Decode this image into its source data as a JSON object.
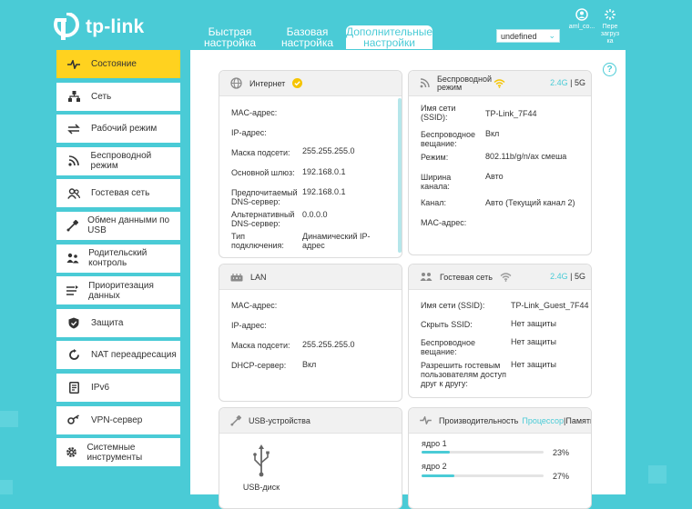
{
  "brand": {
    "logo_text": "tp-link"
  },
  "tabs": [
    {
      "label": "Быстрая настройка"
    },
    {
      "label": "Базовая настройка"
    },
    {
      "label": "Дополнительные настройки"
    }
  ],
  "language": {
    "value": "undefined"
  },
  "top_icons": {
    "account": "aml_co...",
    "reboot": "Пере загруз ка"
  },
  "sidebar": {
    "items": [
      {
        "label": "Состояние"
      },
      {
        "label": "Сеть"
      },
      {
        "label": "Рабочий режим"
      },
      {
        "label": "Беспроводной режим"
      },
      {
        "label": "Гостевая сеть"
      },
      {
        "label": "Обмен данными по USB"
      },
      {
        "label": "Родительский контроль"
      },
      {
        "label": "Приоритезация данных"
      },
      {
        "label": "Защита"
      },
      {
        "label": "NAT переадресация"
      },
      {
        "label": "IPv6"
      },
      {
        "label": "VPN-сервер"
      },
      {
        "label": "Системные инструменты"
      }
    ]
  },
  "internet": {
    "title": "Интернет",
    "rows": [
      {
        "label": "MAC-адрес:",
        "value": ""
      },
      {
        "label": "IP-адрес:",
        "value": ""
      },
      {
        "label": "Маска подсети:",
        "value": "255.255.255.0"
      },
      {
        "label": "Основной шлюз:",
        "value": "192.168.0.1"
      },
      {
        "label": "Предпочитаемый DNS-сервер:",
        "value": "192.168.0.1"
      },
      {
        "label": "Альтернативный DNS-сервер:",
        "value": "0.0.0.0"
      },
      {
        "label": "Тип подключения:",
        "value": "Динамический IP-адрес"
      }
    ]
  },
  "wireless": {
    "title": "Беспроводной режим",
    "band_24": "2.4G",
    "sep": " | ",
    "band_5": "5G",
    "rows": [
      {
        "label": "Имя сети (SSID):",
        "value": "TP-Link_7F44"
      },
      {
        "label": "Беспроводное вещание:",
        "value": "Вкл"
      },
      {
        "label": "Режим:",
        "value": "802.11b/g/n/ax смеша"
      },
      {
        "label": "Ширина канала:",
        "value": "Авто"
      },
      {
        "label": "Канал:",
        "value": "Авто (Текущий канал 2)"
      },
      {
        "label": "MAC-адрес:",
        "value": ""
      }
    ]
  },
  "lan": {
    "title": "LAN",
    "rows": [
      {
        "label": "MAC-адрес:",
        "value": ""
      },
      {
        "label": "IP-адрес:",
        "value": ""
      },
      {
        "label": "Маска подсети:",
        "value": "255.255.255.0"
      },
      {
        "label": "DHCP-сервер:",
        "value": "Вкл"
      }
    ]
  },
  "guest": {
    "title": "Гостевая сеть",
    "band_24": "2.4G",
    "sep": " | ",
    "band_5": "5G",
    "rows": [
      {
        "label": "Имя сети (SSID):",
        "value": "TP-Link_Guest_7F44"
      },
      {
        "label": "Скрыть SSID:",
        "value": "Нет защиты"
      },
      {
        "label": "Беспроводное вещание:",
        "value": "Нет защиты"
      },
      {
        "label": "Разрешить гостевым пользователям доступ друг к другу:",
        "value": "Нет защиты"
      }
    ]
  },
  "usb": {
    "title": "USB-устройства",
    "device": "USB-диск"
  },
  "performance": {
    "title": "Производительность",
    "tab_cpu": "Процессор",
    "sep": "|",
    "tab_mem": "Память",
    "cores": [
      {
        "label": "ядро 1",
        "percent": 23,
        "text": "23%"
      },
      {
        "label": "ядро 2",
        "percent": 27,
        "text": "27%"
      }
    ]
  },
  "colors": {
    "accent": "#4acbd6",
    "active": "#ffd21f"
  }
}
